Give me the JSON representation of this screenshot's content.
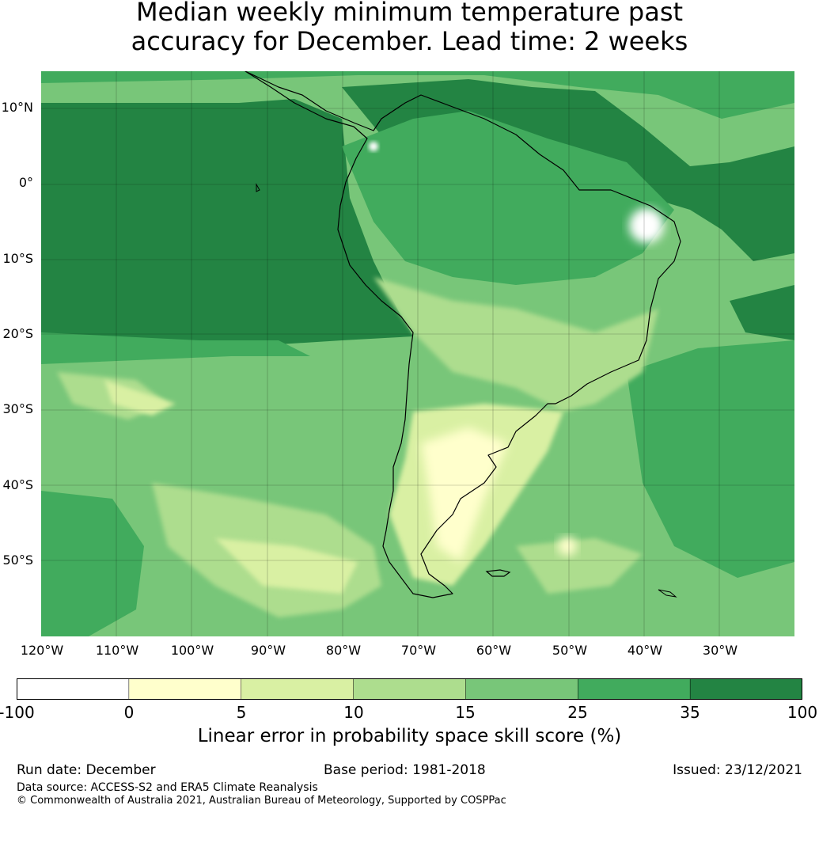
{
  "title": {
    "line1": "Median weekly minimum temperature past",
    "line2": "accuracy for December. Lead time: 2 weeks"
  },
  "map": {
    "region": "South America",
    "lat_labels": [
      "10°N",
      "0°",
      "10°S",
      "20°S",
      "30°S",
      "40°S",
      "50°S"
    ],
    "lon_labels": [
      "120°W",
      "110°W",
      "100°W",
      "90°W",
      "80°W",
      "70°W",
      "60°W",
      "50°W",
      "40°W",
      "30°W"
    ]
  },
  "colorbar": {
    "ticks": [
      "-100",
      "0",
      "5",
      "10",
      "15",
      "25",
      "35",
      "100"
    ],
    "colors": [
      "#ffffff",
      "#ffffcc",
      "#d9f0a3",
      "#addd8e",
      "#78c679",
      "#41ab5d",
      "#238443"
    ],
    "label": "Linear error in probability space skill score (%)"
  },
  "footer": {
    "run_date": "Run date: December",
    "base_period": "Base period: 1981-2018",
    "issued": "Issued: 23/12/2021",
    "data_source": "Data source: ACCESS-S2 and ERA5 Climate Reanalysis",
    "copyright": "© Commonwealth of Australia 2021, Australian Bureau of Meteorology, Supported by COSPPac"
  }
}
